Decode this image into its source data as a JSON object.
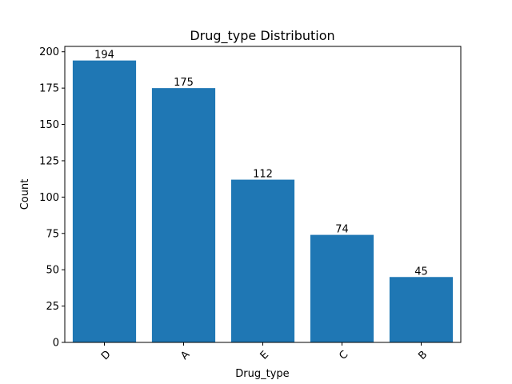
{
  "chart_data": {
    "type": "bar",
    "title": "Drug_type Distribution",
    "xlabel": "Drug_type",
    "ylabel": "Count",
    "categories": [
      "D",
      "A",
      "E",
      "C",
      "B"
    ],
    "values": [
      194,
      175,
      112,
      74,
      45
    ],
    "ylim": [
      0,
      203.7
    ],
    "yticks": [
      0,
      25,
      50,
      75,
      100,
      125,
      150,
      175,
      200
    ],
    "grid": false,
    "legend": "none",
    "bar_color": "#1f77b4",
    "xtick_rotation": 45
  }
}
